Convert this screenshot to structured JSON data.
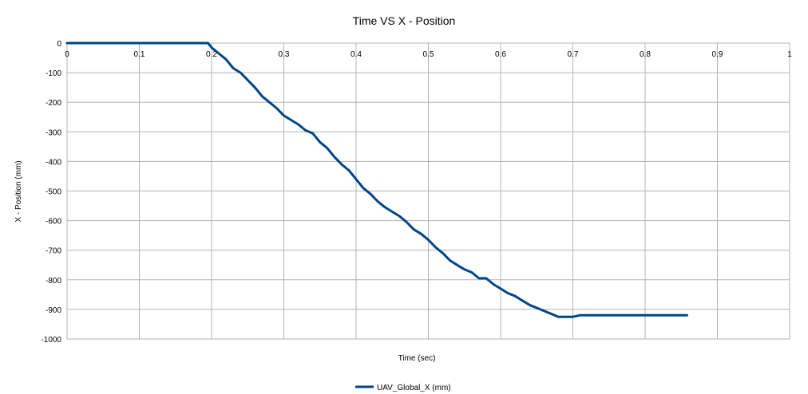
{
  "chart_data": {
    "type": "line",
    "title": "Time VS X - Position",
    "xlabel": "Time (sec)",
    "ylabel": "X - Position (mm)",
    "xlim": [
      0,
      1
    ],
    "ylim": [
      -1000,
      0
    ],
    "x_ticks": [
      "0",
      "0.1",
      "0.2",
      "0.3",
      "0.4",
      "0.5",
      "0.6",
      "0.7",
      "0.8",
      "0.9",
      "1"
    ],
    "y_ticks": [
      "0",
      "-100",
      "-200",
      "-300",
      "-400",
      "-500",
      "-600",
      "-700",
      "-800",
      "-900",
      "-1000"
    ],
    "grid": true,
    "legend_position": "bottom",
    "series": [
      {
        "name": "UAV_Global_X (mm)",
        "color": "#004586",
        "x": [
          0,
          0.05,
          0.1,
          0.15,
          0.195,
          0.2,
          0.21,
          0.22,
          0.23,
          0.24,
          0.25,
          0.26,
          0.27,
          0.28,
          0.29,
          0.3,
          0.31,
          0.32,
          0.33,
          0.34,
          0.35,
          0.36,
          0.37,
          0.38,
          0.39,
          0.4,
          0.41,
          0.42,
          0.43,
          0.44,
          0.45,
          0.46,
          0.47,
          0.48,
          0.49,
          0.5,
          0.51,
          0.52,
          0.53,
          0.54,
          0.55,
          0.56,
          0.57,
          0.58,
          0.59,
          0.6,
          0.61,
          0.62,
          0.63,
          0.64,
          0.65,
          0.66,
          0.67,
          0.68,
          0.69,
          0.7,
          0.71,
          0.75,
          0.8,
          0.858
        ],
        "y": [
          0,
          0,
          0,
          0,
          0,
          -15,
          -35,
          -55,
          -85,
          -100,
          -125,
          -150,
          -180,
          -200,
          -220,
          -245,
          -260,
          -275,
          -295,
          -305,
          -335,
          -355,
          -385,
          -410,
          -430,
          -460,
          -490,
          -510,
          -535,
          -555,
          -570,
          -585,
          -605,
          -630,
          -645,
          -665,
          -690,
          -710,
          -735,
          -750,
          -765,
          -775,
          -795,
          -795,
          -815,
          -830,
          -845,
          -855,
          -870,
          -885,
          -895,
          -905,
          -915,
          -925,
          -925,
          -925,
          -920,
          -920,
          -920,
          -920
        ]
      }
    ]
  }
}
